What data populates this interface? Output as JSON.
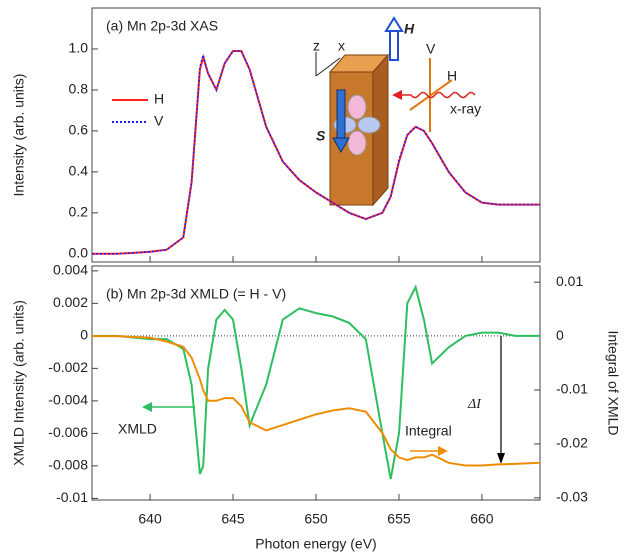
{
  "chart_data": [
    {
      "type": "line",
      "title": "(a) Mn 2p-3d XAS",
      "y_label": "Intensity (arb. units)",
      "x": [
        636.5,
        638,
        640,
        641,
        642,
        642.5,
        643,
        643.2,
        643.5,
        644,
        644.5,
        645,
        645.5,
        646,
        647,
        648,
        649,
        650,
        651,
        652,
        653,
        654,
        654.5,
        655,
        655.5,
        656,
        656.5,
        657,
        658,
        659,
        660,
        661,
        662,
        663.5
      ],
      "series": [
        {
          "name": "H",
          "color": "#ff2020",
          "dash": "solid",
          "values": [
            0.0,
            0.0,
            0.01,
            0.02,
            0.08,
            0.35,
            0.9,
            0.96,
            0.88,
            0.8,
            0.93,
            0.99,
            0.99,
            0.9,
            0.62,
            0.45,
            0.36,
            0.3,
            0.25,
            0.2,
            0.17,
            0.2,
            0.28,
            0.45,
            0.58,
            0.62,
            0.6,
            0.54,
            0.4,
            0.3,
            0.25,
            0.24,
            0.24,
            0.24
          ]
        },
        {
          "name": "V",
          "color": "#2020ff",
          "dash": "dotted",
          "values": [
            0.0,
            0.0,
            0.01,
            0.02,
            0.08,
            0.35,
            0.91,
            0.97,
            0.88,
            0.8,
            0.93,
            0.99,
            0.99,
            0.9,
            0.62,
            0.45,
            0.36,
            0.3,
            0.25,
            0.2,
            0.17,
            0.2,
            0.28,
            0.46,
            0.58,
            0.62,
            0.6,
            0.54,
            0.4,
            0.3,
            0.25,
            0.24,
            0.24,
            0.24
          ]
        }
      ],
      "legend": "left",
      "annotations": [
        "z",
        "x",
        "H",
        "V",
        "H",
        "x-ray",
        "S"
      ],
      "xlim": [
        636.5,
        663.5
      ],
      "xticks": [
        640,
        645,
        650,
        655,
        660
      ],
      "ylim": [
        -0.04,
        1.2
      ],
      "yticks": [
        {
          "value": 0,
          "label": "0.0"
        },
        0.2,
        0.4,
        0.6,
        0.8,
        {
          "value": 1,
          "label": "1.0"
        }
      ]
    },
    {
      "type": "line",
      "title": "(b) Mn 2p-3d XMLD (= H - V)",
      "x_label": "Photon energy (eV)",
      "y_label": "XMLD Intensity (arb. units)",
      "y2_label": "Integral of XMLD",
      "x": [
        636.5,
        638,
        640,
        641,
        642,
        642.5,
        643,
        643.2,
        643.5,
        644,
        644.5,
        645,
        645.5,
        646,
        647,
        648,
        649,
        650,
        651,
        652,
        653,
        654,
        654.5,
        655,
        655.5,
        656,
        656.5,
        657,
        658,
        659,
        660,
        661,
        662,
        663.5
      ],
      "series": [
        {
          "name": "XMLD",
          "color": "#2dbf5f",
          "values": [
            0,
            0,
            -0.0002,
            -0.0002,
            -0.0008,
            -0.003,
            -0.0085,
            -0.008,
            -0.002,
            0.001,
            0.0016,
            0.001,
            -0.002,
            -0.0055,
            -0.003,
            0.001,
            0.0017,
            0.0014,
            0.0012,
            0.0008,
            -0.0002,
            -0.006,
            -0.0088,
            -0.006,
            0.002,
            0.003,
            0.001,
            -0.0017,
            -0.0007,
            0,
            0.0002,
            0.0002,
            0,
            0
          ]
        },
        {
          "name": "Integral",
          "color": "#f08c00",
          "axis": "y2",
          "values": [
            0,
            0,
            -0.0003,
            -0.001,
            -0.002,
            -0.004,
            -0.008,
            -0.01,
            -0.012,
            -0.012,
            -0.0115,
            -0.0115,
            -0.013,
            -0.016,
            -0.0175,
            -0.0165,
            -0.0155,
            -0.0145,
            -0.0138,
            -0.0134,
            -0.014,
            -0.018,
            -0.021,
            -0.0225,
            -0.023,
            -0.0225,
            -0.0225,
            -0.022,
            -0.0235,
            -0.024,
            -0.024,
            -0.0238,
            -0.0237,
            -0.0235
          ]
        }
      ],
      "annotations": [
        "ΔI"
      ],
      "xlim": [
        636.5,
        663.5
      ],
      "xticks": [
        640,
        645,
        650,
        655,
        660
      ],
      "ylim": [
        -0.0101,
        0.0043
      ],
      "yticks": [
        -0.01,
        -0.008,
        -0.006,
        -0.004,
        -0.002,
        0,
        0.002,
        0.004
      ],
      "y2lim": [
        -0.0304,
        0.013
      ],
      "y2ticks": [
        -0.03,
        -0.02,
        -0.01,
        0,
        0.01
      ]
    }
  ]
}
